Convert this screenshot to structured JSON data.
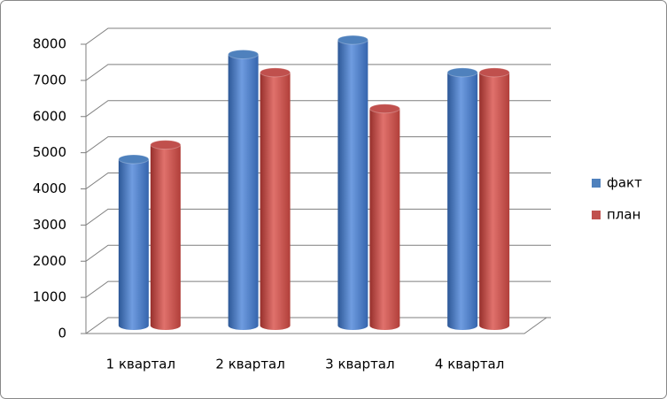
{
  "chart_data": {
    "type": "bar",
    "categories": [
      "1 квартал",
      "2 квартал",
      "3 квартал",
      "4 квартал"
    ],
    "series": [
      {
        "name": "факт",
        "color": "#4f81bd",
        "values": [
          4600,
          7500,
          7900,
          7000
        ]
      },
      {
        "name": "план",
        "color": "#c0504d",
        "values": [
          5000,
          7000,
          6000,
          7000
        ]
      }
    ],
    "ylim": [
      0,
      8000
    ],
    "yticks": [
      0,
      1000,
      2000,
      3000,
      4000,
      5000,
      6000,
      7000,
      8000
    ],
    "grid": true,
    "legend": "right"
  }
}
